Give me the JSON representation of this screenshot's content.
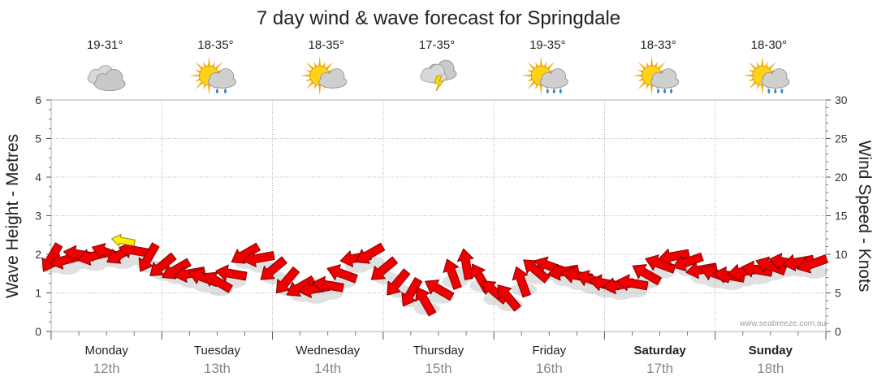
{
  "title": "7 day wind & wave forecast for Springdale",
  "watermark": "www.seabreeze.com.au",
  "colors": {
    "arrow_fill": "#ee0000",
    "arrow_stroke": "#7a0000",
    "highlight_fill": "#ffee00",
    "highlight_stroke": "#8a7a00",
    "grid": "#9a9a9a",
    "axis": "#555555",
    "date_text": "#888888"
  },
  "days": [
    {
      "name": "Monday",
      "date": "12th",
      "temp": "19-31°",
      "icon": "cloudy-icon",
      "bold": false
    },
    {
      "name": "Tuesday",
      "date": "13th",
      "temp": "18-35°",
      "icon": "sun-showers-icon",
      "bold": false
    },
    {
      "name": "Wednesday",
      "date": "14th",
      "temp": "18-35°",
      "icon": "partly-cloudy-icon",
      "bold": false
    },
    {
      "name": "Thursday",
      "date": "15th",
      "temp": "17-35°",
      "icon": "storm-icon",
      "bold": false
    },
    {
      "name": "Friday",
      "date": "16th",
      "temp": "19-35°",
      "icon": "sun-rain-icon",
      "bold": false
    },
    {
      "name": "Saturday",
      "date": "17th",
      "temp": "18-33°",
      "icon": "sun-rain-icon",
      "bold": true
    },
    {
      "name": "Sunday",
      "date": "18th",
      "temp": "18-30°",
      "icon": "sun-rain-icon",
      "bold": true
    }
  ],
  "chart_data": {
    "type": "line",
    "ylabel": "Wave Height - Metres",
    "y2label": "Wind Speed - Knots",
    "ylim": [
      0,
      6
    ],
    "y2lim": [
      0,
      30
    ],
    "yticks": [
      0,
      1,
      2,
      3,
      4,
      5,
      6
    ],
    "y2ticks": [
      0,
      5,
      10,
      15,
      20,
      25,
      30
    ],
    "grid": true,
    "x_unit": "days from Monday 12th 00:00",
    "series": [
      {
        "marker": "wind-direction-arrow",
        "x": [
          0.0,
          0.125,
          0.25,
          0.375,
          0.5,
          0.625,
          0.75,
          0.875,
          1.0,
          1.125,
          1.25,
          1.375,
          1.5,
          1.625,
          1.75,
          1.875,
          2.0,
          2.125,
          2.25,
          2.375,
          2.5,
          2.625,
          2.75,
          2.875,
          3.0,
          3.125,
          3.25,
          3.375,
          3.5,
          3.625,
          3.75,
          3.875,
          4.0,
          4.125,
          4.25,
          4.375,
          4.5,
          4.625,
          4.75,
          4.875,
          5.0,
          5.125,
          5.25,
          5.375,
          5.5,
          5.625,
          5.75,
          5.875,
          6.0,
          6.125,
          6.25,
          6.375,
          6.5,
          6.625,
          6.75,
          6.875
        ],
        "y": [
          1.9,
          1.85,
          2.0,
          1.95,
          2.05,
          2.0,
          2.1,
          1.9,
          1.7,
          1.6,
          1.5,
          1.4,
          1.3,
          1.5,
          2.0,
          1.9,
          1.6,
          1.3,
          1.15,
          1.1,
          1.2,
          1.5,
          1.9,
          2.0,
          1.6,
          1.25,
          1.0,
          0.8,
          1.1,
          1.5,
          1.75,
          1.4,
          1.05,
          0.9,
          1.3,
          1.6,
          1.7,
          1.55,
          1.45,
          1.35,
          1.25,
          1.2,
          1.25,
          1.5,
          1.75,
          1.95,
          1.8,
          1.6,
          1.5,
          1.45,
          1.55,
          1.6,
          1.7,
          1.8,
          1.8,
          1.75
        ],
        "direction_deg": [
          300,
          345,
          10,
          345,
          20,
          330,
          10,
          300,
          320,
          330,
          350,
          20,
          30,
          10,
          330,
          350,
          320,
          310,
          330,
          350,
          10,
          20,
          350,
          330,
          320,
          310,
          300,
          60,
          30,
          70,
          80,
          60,
          40,
          50,
          70,
          40,
          20,
          350,
          10,
          20,
          10,
          350,
          10,
          30,
          20,
          350,
          340,
          350,
          20,
          10,
          350,
          10,
          20,
          10,
          350,
          340
        ]
      }
    ],
    "highlight": {
      "x": 0.65,
      "y": 2.35,
      "direction_deg": 10
    }
  }
}
